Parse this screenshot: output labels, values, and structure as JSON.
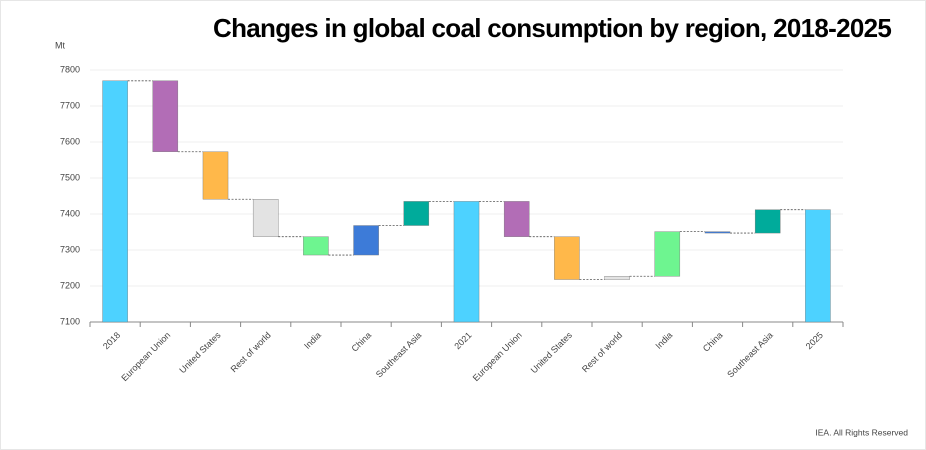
{
  "chart_data": {
    "type": "waterfall",
    "title": "Changes in global coal consumption by region, 2018-2025",
    "y_unit": "Mt",
    "source": "IEA. All Rights Reserved",
    "categories": [
      "2018",
      "European Union",
      "United States",
      "Rest of world",
      "India",
      "China",
      "Southeast Asia",
      "2021",
      "European Union",
      "United States",
      "Rest of world",
      "India",
      "China",
      "Southeast Asia",
      "2025"
    ],
    "measure": [
      "total",
      "change",
      "change",
      "change",
      "change",
      "change",
      "change",
      "total",
      "change",
      "change",
      "change",
      "change",
      "change",
      "change",
      "total"
    ],
    "values": [
      7770,
      -197,
      -132,
      -104,
      -51,
      82,
      67,
      7435,
      -98,
      -119,
      9,
      124,
      -4,
      65,
      7412
    ],
    "colors": [
      "#4dd2ff",
      "#b26db6",
      "#ffb84a",
      "#e3e3e3",
      "#6ef590",
      "#3d7bd8",
      "#00ab9b",
      "#4dd2ff",
      "#b26db6",
      "#ffb84a",
      "#e3e3e3",
      "#6ef590",
      "#3d7bd8",
      "#00ab9b",
      "#4dd2ff"
    ],
    "ylim": [
      7100,
      7800
    ],
    "yticks": [
      7100,
      7200,
      7300,
      7400,
      7500,
      7600,
      7700,
      7800
    ],
    "grid": true
  }
}
